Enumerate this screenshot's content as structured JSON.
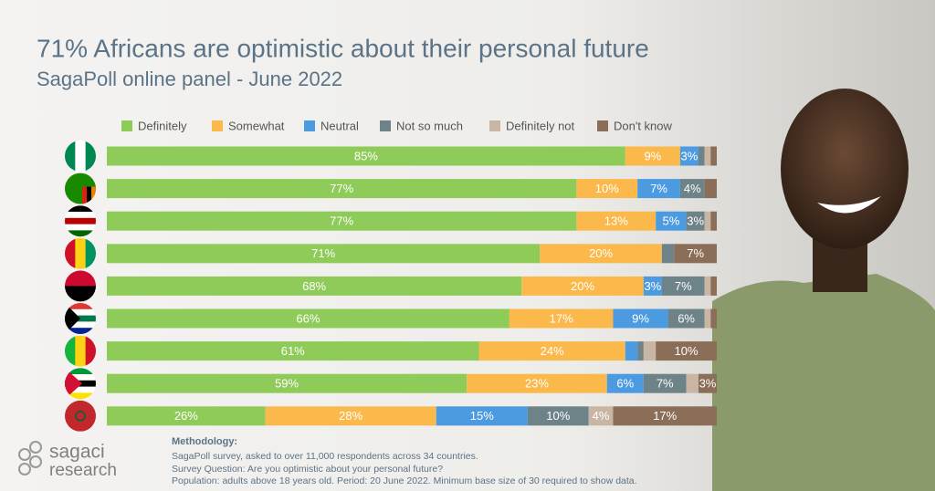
{
  "chart_data": {
    "type": "stacked-bar-horizontal",
    "title": "71% Africans are optimistic about their personal future",
    "subtitle": "SagaPoll online panel - June 2022",
    "categories": [
      null,
      null,
      null,
      null,
      null,
      null,
      null,
      null,
      null
    ],
    "xlim": [
      0,
      100
    ],
    "legend": "top",
    "series": [
      {
        "name": "Definitely",
        "color": "#8fcb58",
        "values": [
          85,
          77,
          77,
          71,
          68,
          66,
          61,
          59,
          26
        ],
        "value_labels": [
          "85%",
          "77%",
          "77%",
          "71%",
          "68%",
          "66%",
          "61%",
          "59%",
          "26%"
        ]
      },
      {
        "name": "Somewhat",
        "color": "#fbb94b",
        "values": [
          9,
          10,
          13,
          20,
          20,
          17,
          24,
          23,
          28
        ],
        "value_labels": [
          "9%",
          "10%",
          "13%",
          "20%",
          "20%",
          "17%",
          "24%",
          "23%",
          "28%"
        ]
      },
      {
        "name": "Neutral",
        "color": "#4c9be0",
        "values": [
          3,
          7,
          5,
          0,
          3,
          9,
          2,
          6,
          15
        ],
        "value_labels": [
          "3%",
          "7%",
          "5%",
          null,
          "3%",
          "9%",
          null,
          "6%",
          "15%"
        ]
      },
      {
        "name": "Not so much",
        "color": "#6e8387",
        "values": [
          1,
          4,
          3,
          2,
          7,
          6,
          1,
          7,
          10
        ],
        "value_labels": [
          null,
          "4%",
          "3%",
          null,
          "7%",
          "6%",
          null,
          "7%",
          "10%"
        ]
      },
      {
        "name": "Definitely not",
        "color": "#c9b5a4",
        "values": [
          1,
          0,
          1,
          0,
          1,
          1,
          2,
          2,
          4
        ],
        "value_labels": [
          null,
          null,
          null,
          null,
          null,
          null,
          null,
          null,
          "4%"
        ]
      },
      {
        "name": "Don't know",
        "color": "#8b6e57",
        "values": [
          1,
          2,
          1,
          7,
          1,
          1,
          10,
          3,
          17
        ],
        "value_labels": [
          null,
          null,
          null,
          "7%",
          null,
          null,
          "10%",
          "3%",
          "17%"
        ]
      }
    ]
  },
  "methodology": {
    "heading": "Methodology:",
    "lines": [
      "SagaPoll survey, asked to over 11,000 respondents across 34 countries.",
      "Survey Question: Are you optimistic about your personal future?",
      "Population: adults above 18 years old. Period: 20 June 2022. Minimum base size of 30 required to show data."
    ]
  },
  "logo": [
    "sagaci",
    "research"
  ]
}
